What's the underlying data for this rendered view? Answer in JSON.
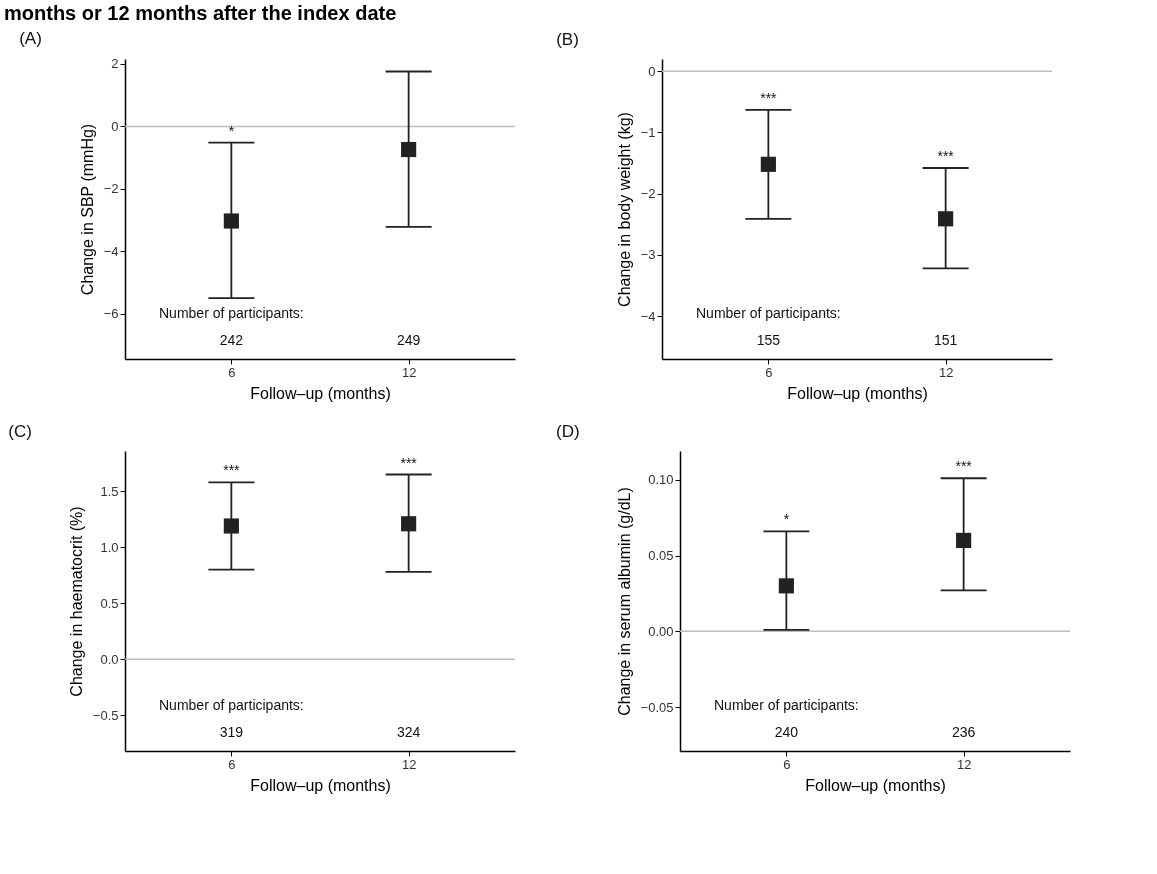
{
  "chart_data": [
    {
      "type": "scatter",
      "title": "(A)",
      "subtitle": "months or 12 months after the index date",
      "xlabel": "Follow–up (months)",
      "ylabel": "Change in SBP (mmHg)",
      "categories": [
        "6",
        "12"
      ],
      "ylim": [
        -7.45,
        2.16
      ],
      "yticks": [
        -6,
        -4,
        -2,
        0,
        2
      ],
      "grid": false,
      "marker": "square",
      "series": [
        {
          "color": "#222222",
          "values": [
            -3.03,
            -0.74
          ],
          "errors": [
            [
              -5.5,
              -0.52
            ],
            [
              -3.22,
              1.76
            ]
          ]
        }
      ],
      "ref_lines": [
        {
          "axis": "y",
          "value": 0,
          "color": "#bebebe"
        }
      ],
      "annotations": [
        "*",
        "Number of participants:",
        "242",
        "249"
      ]
    },
    {
      "type": "scatter",
      "title": "(B)",
      "xlabel": "Follow–up (months)",
      "ylabel": "Change in body weight (kg)",
      "categories": [
        "6",
        "12"
      ],
      "ylim": [
        -4.7,
        0.2
      ],
      "yticks": [
        -4,
        -3,
        -2,
        -1,
        0
      ],
      "grid": false,
      "marker": "square",
      "series": [
        {
          "color": "#222222",
          "values": [
            -1.52,
            -2.41
          ],
          "errors": [
            [
              -2.41,
              -0.63
            ],
            [
              -3.22,
              -1.58
            ]
          ]
        }
      ],
      "ref_lines": [
        {
          "axis": "y",
          "value": 0,
          "color": "#bebebe"
        }
      ],
      "annotations": [
        "***",
        "***",
        "Number of participants:",
        "155",
        "151"
      ]
    },
    {
      "type": "scatter",
      "title": "(C)",
      "xlabel": "Follow–up (months)",
      "ylabel": "Change in haematocrit (%)",
      "categories": [
        "6",
        "12"
      ],
      "ylim": [
        -0.82,
        1.86
      ],
      "yticks": [
        -0.5,
        {
          "value": 0,
          "label": "0.0"
        },
        0.5,
        {
          "value": 1,
          "label": "1.0"
        },
        1.5
      ],
      "grid": false,
      "marker": "square",
      "series": [
        {
          "color": "#222222",
          "values": [
            1.19,
            1.21
          ],
          "errors": [
            [
              0.8,
              1.58
            ],
            [
              0.78,
              1.65
            ]
          ]
        }
      ],
      "ref_lines": [
        {
          "axis": "y",
          "value": 0,
          "color": "#bebebe"
        }
      ],
      "annotations": [
        "***",
        "***",
        "Number of participants:",
        "319",
        "324"
      ]
    },
    {
      "type": "scatter",
      "title": "(D)",
      "xlabel": "Follow–up (months)",
      "ylabel": "Change in serum albumin (g/dL)",
      "categories": [
        "6",
        "12"
      ],
      "ylim": [
        -0.079,
        0.119
      ],
      "yticks": [
        -0.05,
        {
          "value": 0,
          "label": "0.00"
        },
        0.05,
        {
          "value": 0.1,
          "label": "0.10"
        }
      ],
      "grid": false,
      "marker": "square",
      "series": [
        {
          "color": "#222222",
          "values": [
            0.03,
            0.06
          ],
          "errors": [
            [
              0.001,
              0.066
            ],
            [
              0.027,
              0.101
            ]
          ]
        }
      ],
      "ref_lines": [
        {
          "axis": "y",
          "value": 0,
          "color": "#bebebe"
        }
      ],
      "annotations": [
        "*",
        "***",
        "Number of participants:",
        "240",
        "236"
      ]
    }
  ]
}
